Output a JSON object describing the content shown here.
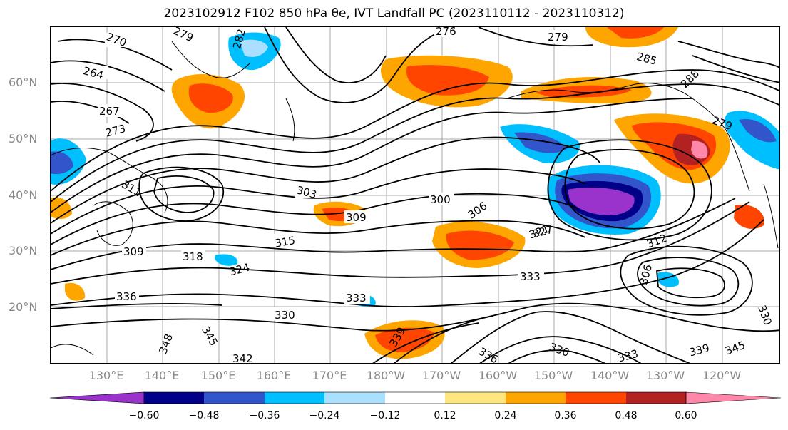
{
  "title": "2023102912 F102 850 hPa θe, IVT Landfall PC (2023110112 - 2023110312)",
  "lat_labels": [
    "60°N",
    "50°N",
    "40°N",
    "30°N",
    "20°N"
  ],
  "lon_labels": [
    "130°E",
    "140°E",
    "150°E",
    "160°E",
    "170°E",
    "180°W",
    "170°W",
    "160°W",
    "150°W",
    "140°W",
    "130°W",
    "120°W"
  ],
  "colorbar": {
    "colors": [
      "#9933cc",
      "#000088",
      "#3355cc",
      "#00bfff",
      "#aadfff",
      "#ffffff",
      "#ffe680",
      "#ffa500",
      "#ff4500",
      "#b22222",
      "#ff88aa"
    ],
    "tick_labels": [
      "−0.60",
      "−0.48",
      "−0.36",
      "−0.24",
      "−0.12",
      "0.12",
      "0.24",
      "0.36",
      "0.48",
      "0.60"
    ]
  },
  "contour_labels": [
    "270",
    "279",
    "282",
    "264",
    "267",
    "273",
    "311",
    "303",
    "309",
    "300",
    "306",
    "315",
    "318",
    "321",
    "324",
    "309",
    "336",
    "330",
    "333",
    "339",
    "345",
    "348",
    "342",
    "336",
    "330",
    "333",
    "339",
    "345",
    "276",
    "279",
    "285",
    "288",
    "279",
    "327",
    "312",
    "306",
    "333",
    "330"
  ]
}
